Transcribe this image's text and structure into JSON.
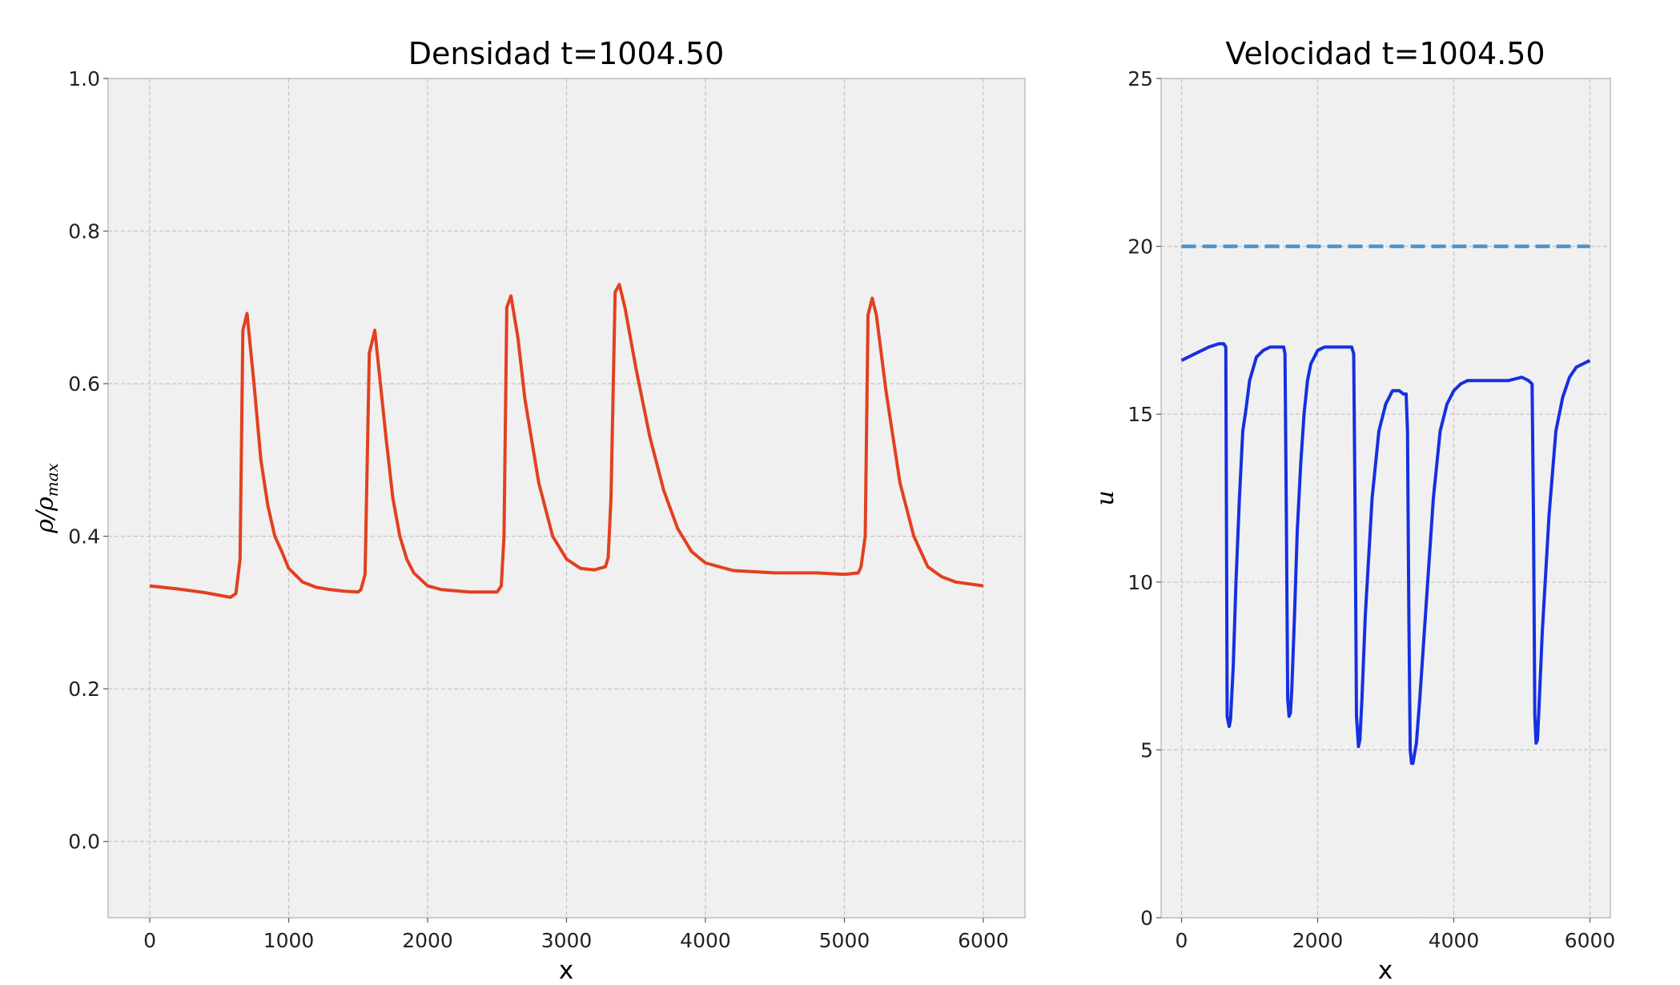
{
  "chart_data": [
    {
      "type": "line",
      "title": "Densidad t=1004.50",
      "xlabel": "x",
      "ylabel": "ρ/ρ",
      "ylabel_sub": "max",
      "xlim": [
        -300,
        6300
      ],
      "ylim": [
        -0.1,
        1.0
      ],
      "xticks": [
        0,
        1000,
        2000,
        3000,
        4000,
        5000,
        6000
      ],
      "yticks": [
        0.0,
        0.2,
        0.4,
        0.6,
        0.8,
        1.0
      ],
      "xtick_labels": [
        "0",
        "1000",
        "2000",
        "3000",
        "4000",
        "5000",
        "6000"
      ],
      "ytick_labels": [
        "0.0",
        "0.2",
        "0.4",
        "0.6",
        "0.8",
        "1.0"
      ],
      "grid": true,
      "colors": {
        "line": "#e2401f",
        "background": "#f0f0f0",
        "grid": "#c4c4c4",
        "spine": "#bdbdbd"
      },
      "series": [
        {
          "x": [
            0,
            200,
            400,
            580,
            620,
            650,
            670,
            700,
            750,
            800,
            850,
            900,
            950,
            1000,
            1100,
            1200,
            1300,
            1400,
            1500,
            1520,
            1550,
            1580,
            1620,
            1700,
            1750,
            1800,
            1850,
            1900,
            2000,
            2100,
            2300,
            2500,
            2530,
            2550,
            2570,
            2600,
            2650,
            2700,
            2800,
            2900,
            3000,
            3100,
            3200,
            3280,
            3300,
            3320,
            3350,
            3380,
            3420,
            3500,
            3600,
            3700,
            3800,
            3900,
            4000,
            4200,
            4500,
            4800,
            5000,
            5100,
            5120,
            5150,
            5170,
            5200,
            5230,
            5300,
            5400,
            5500,
            5600,
            5700,
            5800,
            6000
          ],
          "y": [
            0.335,
            0.331,
            0.326,
            0.32,
            0.325,
            0.37,
            0.67,
            0.692,
            0.6,
            0.5,
            0.44,
            0.4,
            0.38,
            0.358,
            0.34,
            0.333,
            0.33,
            0.328,
            0.327,
            0.33,
            0.35,
            0.64,
            0.67,
            0.53,
            0.45,
            0.4,
            0.37,
            0.352,
            0.335,
            0.33,
            0.327,
            0.327,
            0.335,
            0.4,
            0.7,
            0.715,
            0.66,
            0.58,
            0.47,
            0.4,
            0.37,
            0.358,
            0.356,
            0.36,
            0.372,
            0.45,
            0.72,
            0.73,
            0.7,
            0.62,
            0.53,
            0.46,
            0.41,
            0.38,
            0.365,
            0.355,
            0.352,
            0.352,
            0.35,
            0.352,
            0.36,
            0.4,
            0.69,
            0.712,
            0.69,
            0.59,
            0.47,
            0.4,
            0.36,
            0.347,
            0.34,
            0.335
          ]
        }
      ]
    },
    {
      "type": "line",
      "title": "Velocidad t=1004.50",
      "xlabel": "x",
      "ylabel": "u",
      "xlim": [
        -300,
        6300
      ],
      "ylim": [
        0,
        25
      ],
      "xticks": [
        0,
        2000,
        4000,
        6000
      ],
      "yticks": [
        0,
        5,
        10,
        15,
        20,
        25
      ],
      "xtick_labels": [
        "0",
        "2000",
        "4000",
        "6000"
      ],
      "ytick_labels": [
        "0",
        "5",
        "10",
        "15",
        "20",
        "25"
      ],
      "grid": true,
      "colors": {
        "line": "#1530e0",
        "dashed": "#4f93c9",
        "background": "#f0f0f0",
        "grid": "#c4c4c4",
        "spine": "#bdbdbd"
      },
      "series": [
        {
          "style": "solid",
          "x": [
            0,
            200,
            400,
            550,
            620,
            650,
            660,
            670,
            700,
            720,
            760,
            800,
            850,
            900,
            950,
            1000,
            1100,
            1200,
            1300,
            1400,
            1500,
            1520,
            1540,
            1560,
            1580,
            1600,
            1620,
            1660,
            1700,
            1750,
            1800,
            1850,
            1900,
            2000,
            2100,
            2200,
            2300,
            2400,
            2500,
            2530,
            2550,
            2570,
            2600,
            2620,
            2650,
            2700,
            2800,
            2900,
            3000,
            3050,
            3100,
            3200,
            3260,
            3300,
            3320,
            3340,
            3360,
            3380,
            3400,
            3450,
            3500,
            3600,
            3700,
            3800,
            3900,
            4000,
            4100,
            4200,
            4300,
            4500,
            4800,
            5000,
            5100,
            5150,
            5170,
            5190,
            5210,
            5230,
            5250,
            5300,
            5400,
            5500,
            5600,
            5700,
            5800,
            6000
          ],
          "y": [
            16.6,
            16.8,
            17.0,
            17.1,
            17.1,
            17.0,
            12.0,
            6.0,
            5.7,
            5.9,
            7.5,
            10.0,
            12.5,
            14.5,
            15.2,
            16.0,
            16.7,
            16.9,
            17.0,
            17.0,
            17.0,
            16.8,
            12.0,
            6.5,
            6.0,
            6.1,
            6.8,
            9.0,
            11.5,
            13.5,
            15.0,
            16.0,
            16.5,
            16.9,
            17.0,
            17.0,
            17.0,
            17.0,
            17.0,
            16.8,
            12.0,
            6.0,
            5.1,
            5.3,
            6.5,
            9.0,
            12.5,
            14.5,
            15.3,
            15.5,
            15.7,
            15.7,
            15.6,
            15.6,
            14.5,
            9.0,
            5.0,
            4.6,
            4.6,
            5.2,
            6.5,
            9.5,
            12.5,
            14.5,
            15.3,
            15.7,
            15.9,
            16.0,
            16.0,
            16.0,
            16.0,
            16.1,
            16.0,
            15.9,
            12.0,
            6.0,
            5.2,
            5.3,
            6.2,
            8.5,
            12.0,
            14.5,
            15.5,
            16.1,
            16.4,
            16.6
          ]
        },
        {
          "style": "dashed",
          "x": [
            0,
            6000
          ],
          "y": [
            20,
            20
          ]
        }
      ]
    }
  ]
}
